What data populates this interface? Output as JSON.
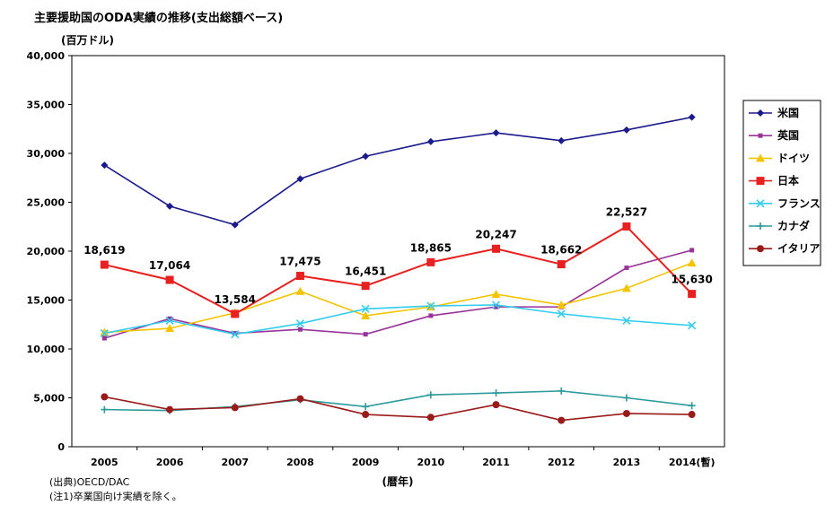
{
  "chart_data": {
    "type": "line",
    "title": "主要援助国のODA実績の推移(支出総額ベース)",
    "ylabel": "(百万ドル)",
    "xlabel": "(暦年)",
    "ylim": [
      0,
      40000
    ],
    "yticks": [
      "0",
      "5,000",
      "10,000",
      "15,000",
      "20,000",
      "25,000",
      "30,000",
      "35,000",
      "40,000"
    ],
    "categories": [
      "2005",
      "2006",
      "2007",
      "2008",
      "2009",
      "2010",
      "2011",
      "2012",
      "2013",
      "2014(暫)"
    ],
    "grid": false,
    "legend_position": "right",
    "series": [
      {
        "name": "米国",
        "color": "#1a1a8c",
        "marker": "diamond",
        "values": [
          28800,
          24600,
          22700,
          27400,
          29700,
          31200,
          32100,
          31300,
          32400,
          33700
        ]
      },
      {
        "name": "英国",
        "color": "#993399",
        "marker": "square-small",
        "values": [
          11100,
          13100,
          11600,
          12000,
          11500,
          13400,
          14300,
          14300,
          18300,
          20100
        ]
      },
      {
        "name": "ドイツ",
        "color": "#f5c400",
        "marker": "triangle",
        "values": [
          11700,
          12100,
          13700,
          15900,
          13400,
          14300,
          15600,
          14500,
          16200,
          18800
        ]
      },
      {
        "name": "日本",
        "color": "#e82020",
        "marker": "square",
        "values": [
          18619,
          17064,
          13584,
          17475,
          16451,
          18865,
          20247,
          18662,
          22527,
          15630
        ]
      },
      {
        "name": "フランス",
        "color": "#33ccee",
        "marker": "x",
        "values": [
          11600,
          12900,
          11500,
          12600,
          14100,
          14400,
          14500,
          13600,
          12900,
          12400
        ]
      },
      {
        "name": "カナダ",
        "color": "#2a9a9a",
        "marker": "plus",
        "values": [
          3800,
          3700,
          4100,
          4800,
          4100,
          5300,
          5500,
          5700,
          5000,
          4200
        ]
      },
      {
        "name": "イタリア",
        "color": "#9a1a1a",
        "marker": "circle",
        "values": [
          5100,
          3800,
          4000,
          4900,
          3300,
          3000,
          4300,
          2700,
          3400,
          3300
        ]
      }
    ],
    "data_labels": {
      "series": "日本",
      "labels": [
        "18,619",
        "17,064",
        "13,584",
        "17,475",
        "16,451",
        "18,865",
        "20,247",
        "18,662",
        "22,527",
        "15,630"
      ]
    }
  },
  "notes": {
    "source": "(出典)OECD/DAC",
    "note1": "(注1)卒業国向け実績を除く。"
  }
}
